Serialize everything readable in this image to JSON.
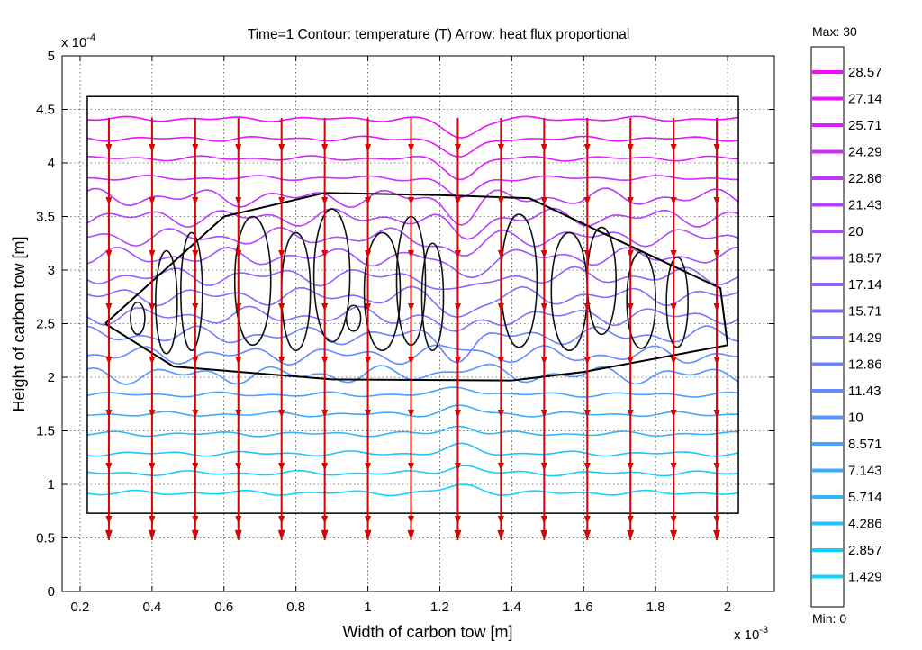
{
  "chart_data": {
    "type": "contour",
    "title": "Time=1  Contour: temperature (T)  Arrow: heat flux proportional",
    "xlabel": "Width of carbon tow [m]",
    "ylabel": "Height of carbon tow [m]",
    "x_exponent": "x 10",
    "x_exponent_power": "-3",
    "y_exponent": "x 10",
    "y_exponent_power": "-4",
    "xlim": [
      0.15,
      2.13
    ],
    "ylim": [
      0,
      5
    ],
    "xticks": [
      0.2,
      0.4,
      0.6,
      0.8,
      1,
      1.2,
      1.4,
      1.6,
      1.8,
      2
    ],
    "xtick_labels": [
      "0.2",
      "0.4",
      "0.6",
      "0.8",
      "1",
      "1.2",
      "1.4",
      "1.6",
      "1.8",
      "2"
    ],
    "yticks": [
      0,
      0.5,
      1,
      1.5,
      2,
      2.5,
      3,
      3.5,
      4,
      4.5,
      5
    ],
    "ytick_labels": [
      "0",
      "0.5",
      "1",
      "1.5",
      "2",
      "2.5",
      "3",
      "3.5",
      "4",
      "4.5",
      "5"
    ],
    "grid": true,
    "domain_rect": {
      "x": [
        0.22,
        2.03
      ],
      "y": [
        0.73,
        4.62
      ]
    },
    "tow_boundary": [
      [
        0.27,
        2.5
      ],
      [
        0.46,
        2.1
      ],
      [
        0.9,
        1.98
      ],
      [
        1.4,
        1.97
      ],
      [
        1.6,
        2.05
      ],
      [
        2.0,
        2.3
      ],
      [
        1.98,
        2.83
      ],
      [
        1.65,
        3.35
      ],
      [
        1.45,
        3.67
      ],
      [
        1.2,
        3.7
      ],
      [
        0.88,
        3.72
      ],
      [
        0.6,
        3.5
      ],
      [
        0.27,
        2.5
      ]
    ],
    "contour_levels": [
      1.429,
      2.857,
      4.286,
      5.714,
      7.143,
      8.571,
      10,
      11.43,
      12.86,
      14.29,
      15.71,
      17.14,
      18.57,
      20,
      21.43,
      22.86,
      24.29,
      25.71,
      27.14,
      28.57
    ],
    "colorbar": {
      "max_label": "Max: 30",
      "min_label": "Min: 0",
      "labels": [
        "28.57",
        "27.14",
        "25.71",
        "24.29",
        "22.86",
        "21.43",
        "20",
        "18.57",
        "17.14",
        "15.71",
        "14.29",
        "12.86",
        "11.43",
        "10",
        "8.571",
        "7.143",
        "5.714",
        "4.286",
        "2.857",
        "1.429"
      ],
      "color_low": "#00e0ff",
      "color_high": "#ff00ff"
    },
    "arrows": {
      "x": [
        0.28,
        0.4,
        0.52,
        0.64,
        0.76,
        0.88,
        1.0,
        1.12,
        1.25,
        1.37,
        1.49,
        1.61,
        1.73,
        1.85,
        1.97
      ],
      "y_top": 4.42,
      "y_bottom": 0.48,
      "color": "#dd0000"
    }
  }
}
